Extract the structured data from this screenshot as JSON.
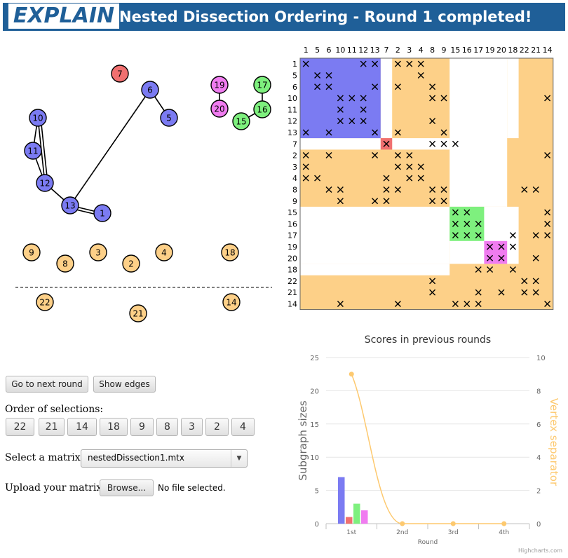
{
  "header": {
    "logo": "EXPLAIN",
    "title": "Nested Dissection Ordering - Round 1 completed!"
  },
  "graph": {
    "nodes": [
      {
        "id": "7",
        "color": "red"
      },
      {
        "id": "6",
        "color": "blue"
      },
      {
        "id": "5",
        "color": "blue"
      },
      {
        "id": "10",
        "color": "blue"
      },
      {
        "id": "11",
        "color": "blue"
      },
      {
        "id": "12",
        "color": "blue"
      },
      {
        "id": "13",
        "color": "blue"
      },
      {
        "id": "1",
        "color": "blue"
      },
      {
        "id": "19",
        "color": "magenta"
      },
      {
        "id": "20",
        "color": "magenta"
      },
      {
        "id": "17",
        "color": "green"
      },
      {
        "id": "16",
        "color": "green"
      },
      {
        "id": "15",
        "color": "green"
      },
      {
        "id": "9",
        "color": "orange"
      },
      {
        "id": "8",
        "color": "orange"
      },
      {
        "id": "3",
        "color": "orange"
      },
      {
        "id": "2",
        "color": "orange"
      },
      {
        "id": "4",
        "color": "orange"
      },
      {
        "id": "18",
        "color": "orange"
      },
      {
        "id": "22",
        "color": "orange"
      },
      {
        "id": "21",
        "color": "orange"
      },
      {
        "id": "14",
        "color": "orange"
      }
    ],
    "edges": [
      [
        "6",
        "5"
      ],
      [
        "6",
        "13"
      ],
      [
        "10",
        "11"
      ],
      [
        "10",
        "12"
      ],
      [
        "11",
        "12"
      ],
      [
        "12",
        "13"
      ],
      [
        "13",
        "1"
      ],
      [
        "19",
        "20"
      ],
      [
        "17",
        "16"
      ],
      [
        "16",
        "15"
      ]
    ]
  },
  "colors": {
    "blue": "#7b7bf2",
    "red": "#f07070",
    "green": "#7ef07e",
    "magenta": "#f07cf0",
    "orange": "#fdd088",
    "header": "#1f5f98",
    "vertex_line": "#fdc96f"
  },
  "matrix": {
    "order": [
      "1",
      "5",
      "6",
      "10",
      "11",
      "12",
      "13",
      "7",
      "2",
      "3",
      "4",
      "8",
      "9",
      "15",
      "16",
      "17",
      "19",
      "20",
      "18",
      "22",
      "21",
      "14"
    ],
    "col_labels": [
      "1",
      "5",
      "6",
      "10",
      "11",
      "12",
      "13",
      "7",
      "2",
      "3",
      "4",
      "8",
      "9",
      "15",
      "16",
      "17",
      "19",
      "20",
      "18",
      "22",
      "21",
      "14"
    ],
    "row_labels": [
      "1",
      "5",
      "6",
      "10",
      "11",
      "12",
      "13",
      "7",
      "2",
      "3",
      "4",
      "8",
      "9",
      "15",
      "16",
      "17",
      "19",
      "20",
      "18",
      "22",
      "21",
      "14"
    ],
    "marks": [
      [
        0,
        0
      ],
      [
        0,
        5
      ],
      [
        0,
        6
      ],
      [
        0,
        8
      ],
      [
        0,
        9
      ],
      [
        0,
        10
      ],
      [
        1,
        1
      ],
      [
        1,
        2
      ],
      [
        1,
        10
      ],
      [
        2,
        1
      ],
      [
        2,
        2
      ],
      [
        2,
        6
      ],
      [
        2,
        8
      ],
      [
        2,
        11
      ],
      [
        3,
        3
      ],
      [
        3,
        4
      ],
      [
        3,
        5
      ],
      [
        3,
        11
      ],
      [
        3,
        12
      ],
      [
        3,
        21
      ],
      [
        4,
        3
      ],
      [
        4,
        5
      ],
      [
        5,
        3
      ],
      [
        5,
        4
      ],
      [
        5,
        5
      ],
      [
        5,
        11
      ],
      [
        6,
        0
      ],
      [
        6,
        2
      ],
      [
        6,
        6
      ],
      [
        6,
        8
      ],
      [
        6,
        12
      ],
      [
        7,
        7
      ],
      [
        7,
        11
      ],
      [
        7,
        12
      ],
      [
        7,
        13
      ],
      [
        8,
        0
      ],
      [
        8,
        2
      ],
      [
        8,
        6
      ],
      [
        8,
        8
      ],
      [
        8,
        9
      ],
      [
        8,
        21
      ],
      [
        9,
        0
      ],
      [
        9,
        8
      ],
      [
        9,
        9
      ],
      [
        9,
        10
      ],
      [
        10,
        0
      ],
      [
        10,
        1
      ],
      [
        10,
        7
      ],
      [
        10,
        9
      ],
      [
        10,
        10
      ],
      [
        11,
        2
      ],
      [
        11,
        3
      ],
      [
        11,
        7
      ],
      [
        11,
        8
      ],
      [
        11,
        11
      ],
      [
        11,
        12
      ],
      [
        11,
        19
      ],
      [
        11,
        20
      ],
      [
        12,
        3
      ],
      [
        12,
        6
      ],
      [
        12,
        7
      ],
      [
        12,
        11
      ],
      [
        12,
        12
      ],
      [
        13,
        13
      ],
      [
        13,
        14
      ],
      [
        13,
        21
      ],
      [
        14,
        13
      ],
      [
        14,
        14
      ],
      [
        14,
        15
      ],
      [
        14,
        21
      ],
      [
        15,
        13
      ],
      [
        15,
        14
      ],
      [
        15,
        15
      ],
      [
        15,
        18
      ],
      [
        15,
        20
      ],
      [
        15,
        21
      ],
      [
        16,
        16
      ],
      [
        16,
        17
      ],
      [
        16,
        18
      ],
      [
        17,
        16
      ],
      [
        17,
        17
      ],
      [
        17,
        20
      ],
      [
        18,
        15
      ],
      [
        18,
        16
      ],
      [
        18,
        18
      ],
      [
        19,
        11
      ],
      [
        19,
        19
      ],
      [
        19,
        20
      ],
      [
        20,
        11
      ],
      [
        20,
        15
      ],
      [
        20,
        17
      ],
      [
        20,
        19
      ],
      [
        20,
        20
      ],
      [
        21,
        3
      ],
      [
        21,
        8
      ],
      [
        21,
        13
      ],
      [
        21,
        14
      ],
      [
        21,
        15
      ],
      [
        21,
        21
      ]
    ]
  },
  "chart_data": {
    "type": "bar",
    "title": "Scores in previous rounds",
    "categories": [
      "1st",
      "2nd",
      "3rd",
      "4th"
    ],
    "xlabel": "Round",
    "ylabel": "Subgraph sizes",
    "ylabel_right": "Vertex separator",
    "ylim": [
      0,
      25
    ],
    "ylim_right": [
      0,
      10
    ],
    "yticks": [
      "0",
      "5",
      "10",
      "15",
      "20",
      "25"
    ],
    "yticks_right": [
      "0",
      "2",
      "4",
      "6",
      "8",
      "10"
    ],
    "series": [
      {
        "type": "bar",
        "color": "#7b7bf2",
        "values": [
          7,
          null,
          null,
          null
        ]
      },
      {
        "type": "bar",
        "color": "#f07070",
        "values": [
          1,
          null,
          null,
          null
        ]
      },
      {
        "type": "bar",
        "color": "#7ef07e",
        "values": [
          3,
          null,
          null,
          null
        ]
      },
      {
        "type": "bar",
        "color": "#f07cf0",
        "values": [
          2,
          null,
          null,
          null
        ]
      },
      {
        "type": "line",
        "color": "#fdc96f",
        "axis": "right",
        "values": [
          9,
          0,
          0,
          0
        ]
      }
    ],
    "credits": "Highcharts.com"
  },
  "controls": {
    "next_round": "Go to next round",
    "show_edges": "Show edges",
    "order_label": "Order of selections:",
    "order": [
      "22",
      "21",
      "14",
      "18",
      "9",
      "8",
      "3",
      "2",
      "4"
    ],
    "select_label": "Select a matrix:",
    "select_value": "nestedDissection1.mtx",
    "upload_label": "Upload your matrix:",
    "browse": "Browse...",
    "file_status": "No file selected."
  }
}
